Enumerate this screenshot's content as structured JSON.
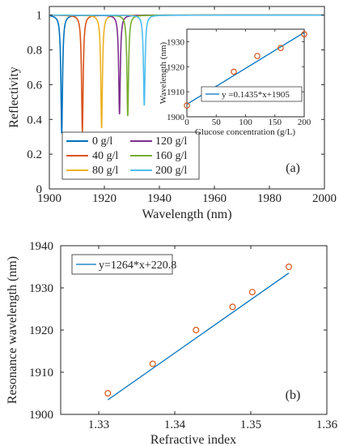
{
  "colors": {
    "axis": "#262626",
    "line_b": "#0072BD",
    "marker": "#D95319",
    "series": [
      "#0072BD",
      "#D95319",
      "#EDB120",
      "#7E2F8E",
      "#77AC30",
      "#4DBEEE"
    ]
  },
  "chart_data": [
    {
      "type": "line",
      "panel_label": "(a)",
      "xlabel": "Wavelength (nm)",
      "ylabel": "Reflectivity",
      "xlim": [
        1900,
        2000
      ],
      "ylim": [
        0,
        1.05
      ],
      "xticks": [
        1900,
        1920,
        1940,
        1960,
        1980,
        2000
      ],
      "yticks": [
        0,
        0.2,
        0.4,
        0.6,
        0.8,
        1
      ],
      "xtick_labels": [
        "1900",
        "1920",
        "1940",
        "1960",
        "1980",
        "2000"
      ],
      "ytick_labels": [
        "0",
        "0.2",
        "0.4",
        "0.6",
        "0.8",
        "1"
      ],
      "baseline": 1.0,
      "dip_halfwidth_nm": 0.35,
      "legend_position": "bottom-left",
      "legend_columns": 2,
      "series": [
        {
          "name": "0 g/l",
          "resonance": 1904.5,
          "min": 0.32
        },
        {
          "name": "40 g/l",
          "resonance": 1912.0,
          "min": 0.33
        },
        {
          "name": "80 g/l",
          "resonance": 1919.0,
          "min": 0.35
        },
        {
          "name": "120 g/l",
          "resonance": 1925.5,
          "min": 0.43
        },
        {
          "name": "160 g/l",
          "resonance": 1928.5,
          "min": 0.42
        },
        {
          "name": "200 g/l",
          "resonance": 1934.5,
          "min": 0.48
        }
      ]
    },
    {
      "type": "scatter",
      "inset": true,
      "xlabel": "Glucose concentration (g/L)",
      "ylabel": "Wavelength (nm)",
      "xlim": [
        0,
        200
      ],
      "ylim": [
        1900,
        1935
      ],
      "xticks": [
        0,
        50,
        100,
        150,
        200
      ],
      "yticks": [
        1900,
        1910,
        1920,
        1930
      ],
      "xtick_labels": [
        "0",
        "50",
        "100",
        "150",
        "200"
      ],
      "ytick_labels": [
        "1900",
        "1910",
        "1920",
        "1930"
      ],
      "fit_label": "y =0.1435*x+1905",
      "fit": {
        "slope": 0.1435,
        "intercept": 1905
      },
      "points": {
        "x": [
          0,
          40,
          80,
          120,
          160,
          200
        ],
        "y": [
          1904.5,
          1910.8,
          1918.0,
          1924.3,
          1927.5,
          1933.0
        ]
      }
    },
    {
      "type": "scatter",
      "panel_label": "(b)",
      "xlabel": "Refractive index",
      "ylabel": "Resonance wavelength (nm)",
      "xlim": [
        1.325,
        1.36
      ],
      "ylim": [
        1900,
        1940
      ],
      "xticks": [
        1.33,
        1.34,
        1.35,
        1.36
      ],
      "yticks": [
        1900,
        1910,
        1920,
        1930,
        1940
      ],
      "xtick_labels": [
        "1.33",
        "1.34",
        "1.35",
        "1.36"
      ],
      "ytick_labels": [
        "1900",
        "1910",
        "1920",
        "1930",
        "1940"
      ],
      "fit_label": "y=1264*x+220.8",
      "fit": {
        "slope": 1264,
        "intercept": 220.8,
        "x_range": [
          1.3312,
          1.355
        ]
      },
      "points": {
        "x": [
          1.3312,
          1.3371,
          1.3428,
          1.3476,
          1.3502,
          1.355
        ],
        "y": [
          1905.0,
          1912.0,
          1920.0,
          1925.5,
          1929.0,
          1935.0
        ]
      }
    }
  ]
}
